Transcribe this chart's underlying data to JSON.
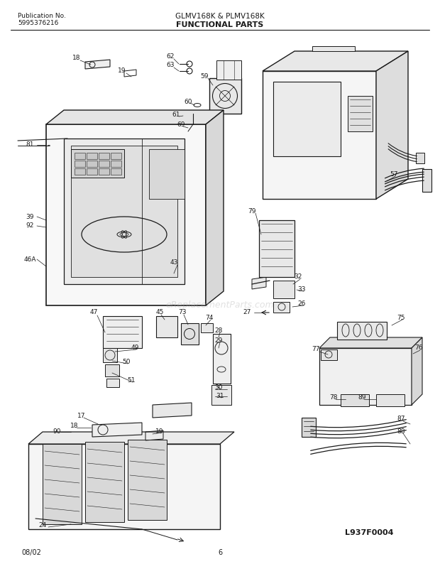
{
  "title_center": "GLMV168K & PLMV168K",
  "title_sub": "FUNCTIONAL PARTS",
  "pub_no_label": "Publication No.",
  "pub_no_value": "5995376216",
  "date_label": "08/02",
  "page_label": "6",
  "diagram_id": "L937F0004",
  "bg_color": "#ffffff",
  "line_color": "#1a1a1a",
  "text_color": "#1a1a1a",
  "watermark": "eReplacementParts.com",
  "watermark_color": "#aaaaaa"
}
